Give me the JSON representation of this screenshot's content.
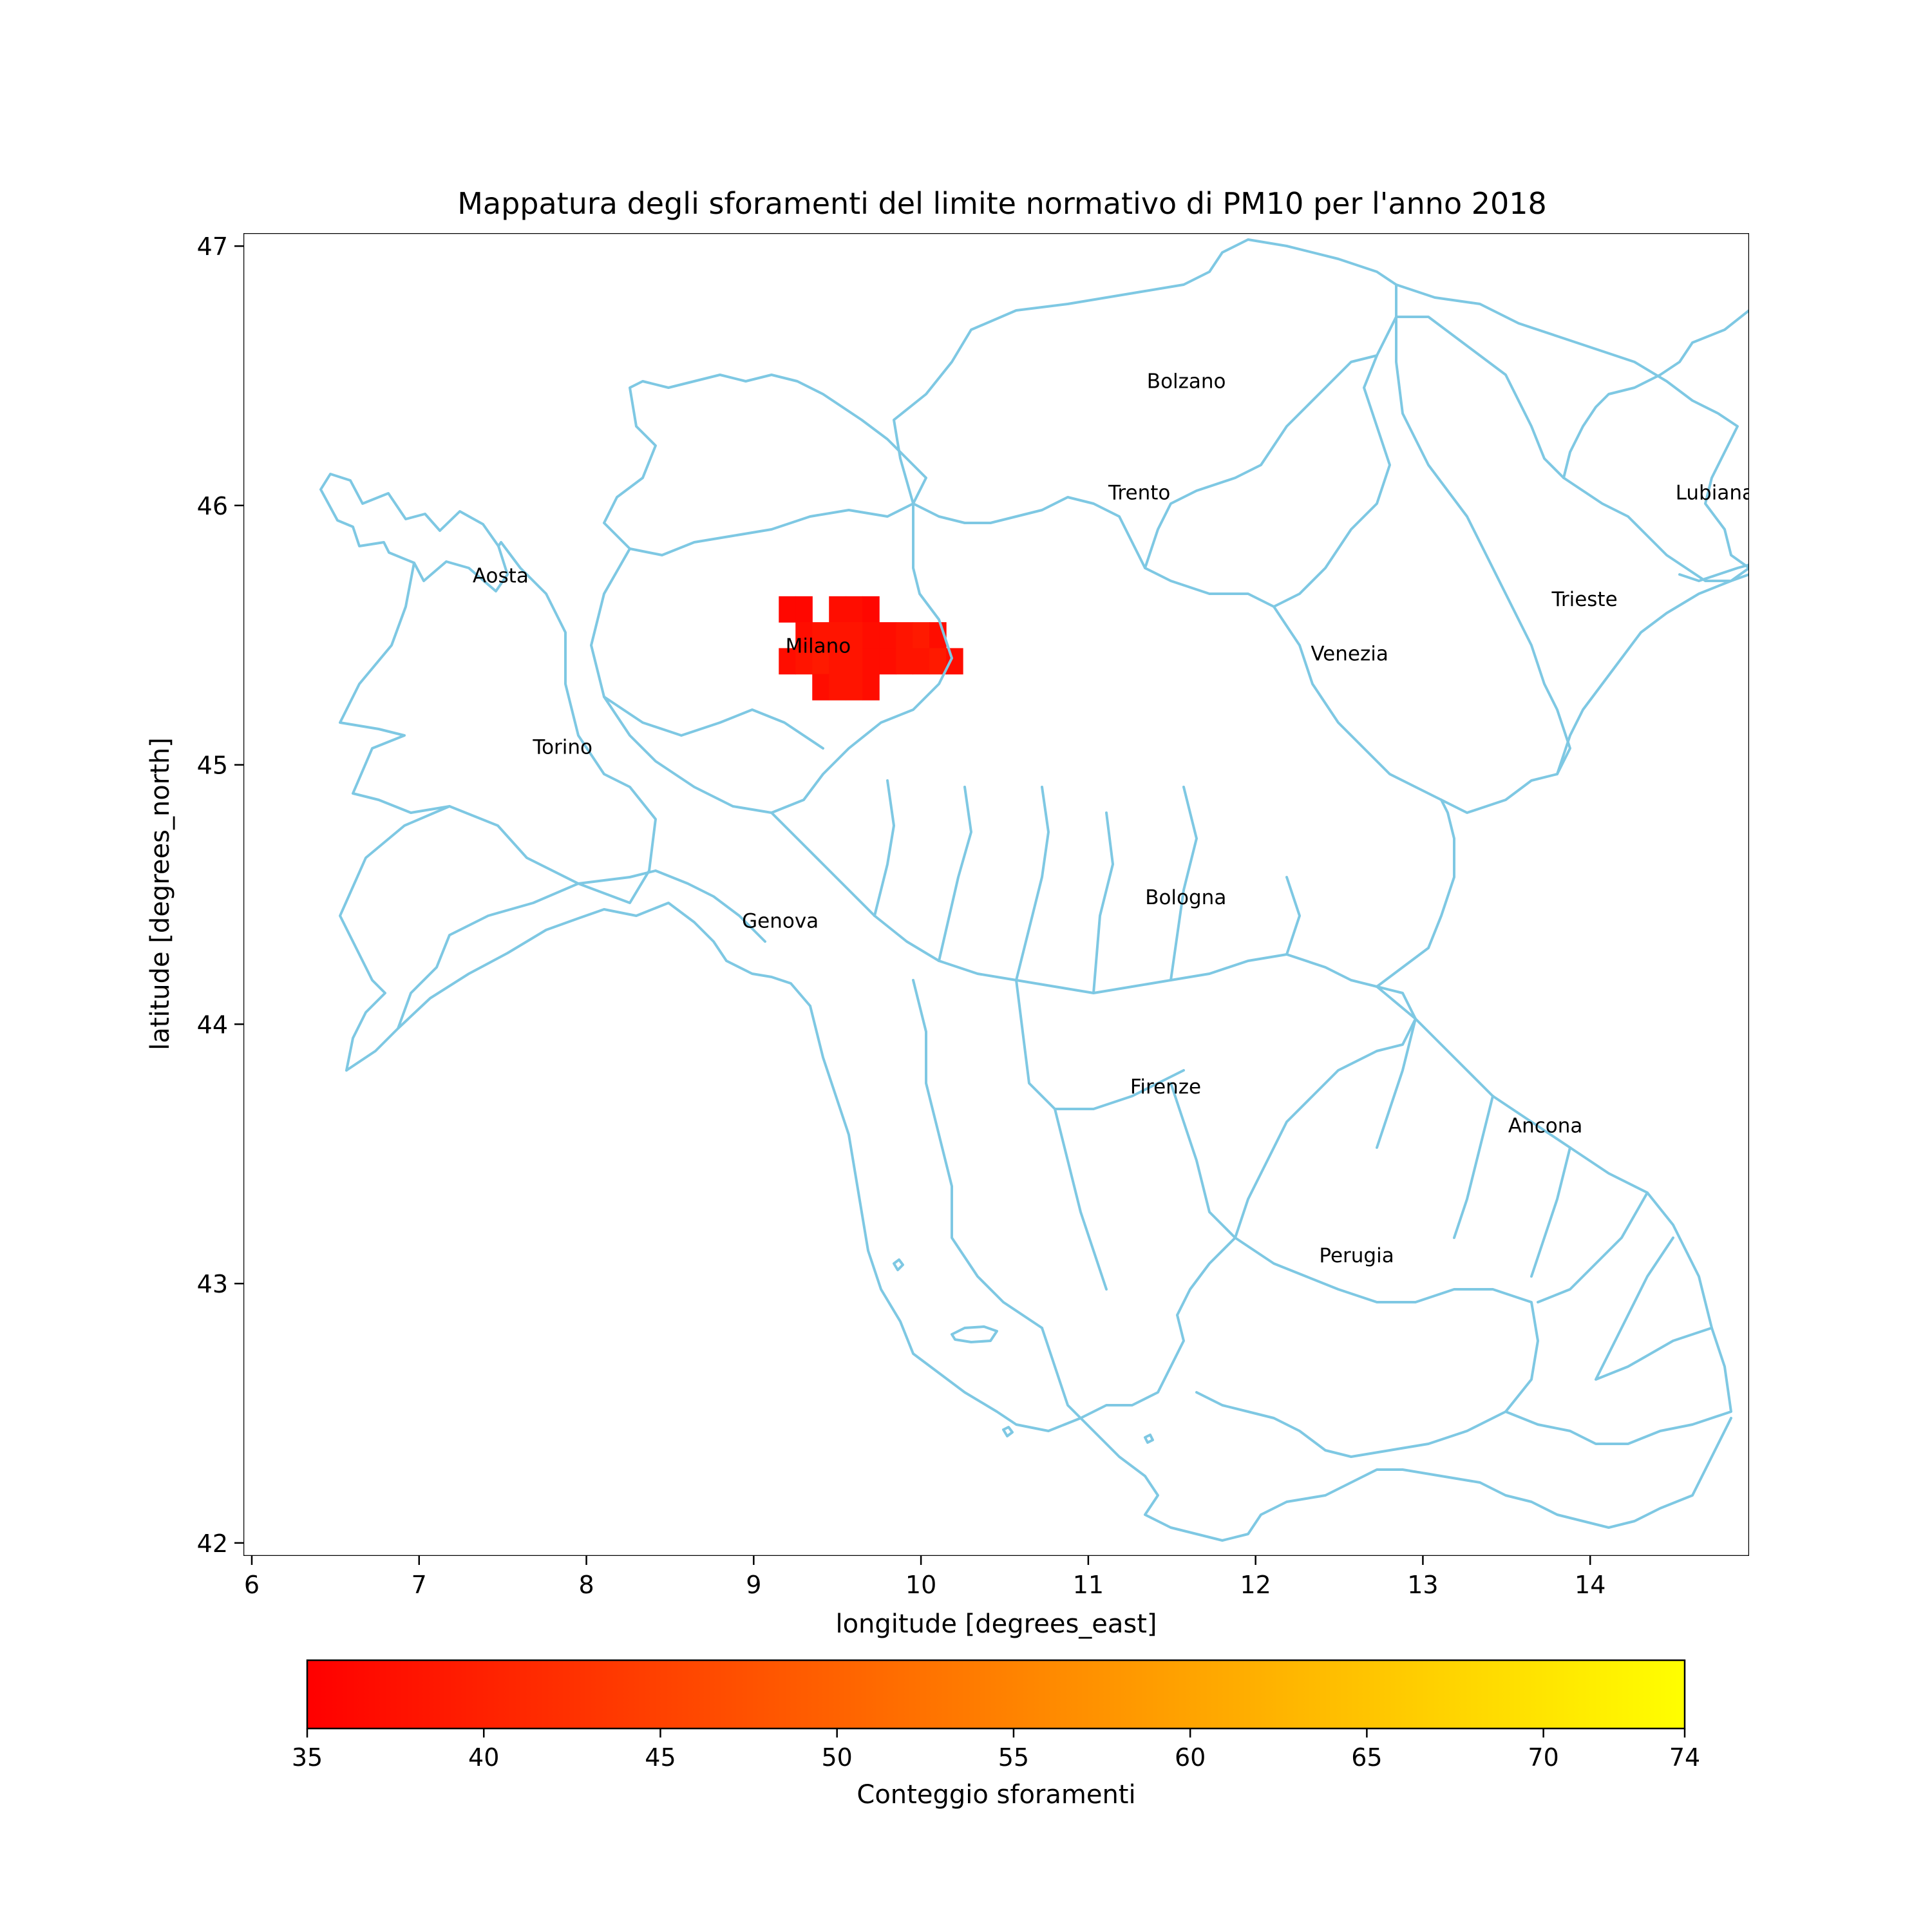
{
  "title": "Mappatura degli sforamenti del limite normativo di PM10 per l'anno 2018",
  "xlabel": "longitude [degrees_east]",
  "ylabel": "latitude [degrees_north]",
  "x_ticks": [
    "6",
    "7",
    "8",
    "9",
    "10",
    "11",
    "12",
    "13",
    "14"
  ],
  "y_ticks": [
    "42",
    "43",
    "44",
    "45",
    "46",
    "47"
  ],
  "x_range": [
    5.95,
    14.95
  ],
  "y_range": [
    41.95,
    47.05
  ],
  "cities": [
    {
      "name": "Bolzano",
      "lon": 11.35,
      "lat": 46.48
    },
    {
      "name": "Trento",
      "lon": 11.12,
      "lat": 46.05
    },
    {
      "name": "Lubiana",
      "lon": 14.51,
      "lat": 46.05
    },
    {
      "name": "Aosta",
      "lon": 7.32,
      "lat": 45.73
    },
    {
      "name": "Trieste",
      "lon": 13.77,
      "lat": 45.64
    },
    {
      "name": "Milano",
      "lon": 9.19,
      "lat": 45.46
    },
    {
      "name": "Venezia",
      "lon": 12.33,
      "lat": 45.43
    },
    {
      "name": "Torino",
      "lon": 7.68,
      "lat": 45.07
    },
    {
      "name": "Bologna",
      "lon": 11.34,
      "lat": 44.49
    },
    {
      "name": "Genova",
      "lon": 8.93,
      "lat": 44.4
    },
    {
      "name": "Firenze",
      "lon": 11.25,
      "lat": 43.76
    },
    {
      "name": "Ancona",
      "lon": 13.51,
      "lat": 43.61
    },
    {
      "name": "Perugia",
      "lon": 12.38,
      "lat": 43.11
    }
  ],
  "colorbar": {
    "label": "Conteggio sforamenti",
    "min": 35,
    "max": 74,
    "ticks": [
      "35",
      "40",
      "45",
      "50",
      "55",
      "60",
      "65",
      "70",
      "74"
    ],
    "colormap": [
      "#ff0000",
      "#ffff00"
    ]
  },
  "colors": {
    "borders": "#7ec8e3"
  },
  "chart_data": {
    "type": "heatmap",
    "title": "Mappatura degli sforamenti del limite normativo di PM10 per l'anno 2018",
    "xlabel": "longitude [degrees_east]",
    "ylabel": "latitude [degrees_north]",
    "xlim": [
      5.95,
      14.95
    ],
    "ylim": [
      41.95,
      47.05
    ],
    "cell_size_deg": 0.1,
    "value_range": [
      35,
      74
    ],
    "cells": [
      {
        "lon": 9.2,
        "lat": 45.6,
        "value": 36
      },
      {
        "lon": 9.3,
        "lat": 45.6,
        "value": 36
      },
      {
        "lon": 9.5,
        "lat": 45.6,
        "value": 37
      },
      {
        "lon": 9.6,
        "lat": 45.6,
        "value": 37
      },
      {
        "lon": 9.7,
        "lat": 45.6,
        "value": 36
      },
      {
        "lon": 9.3,
        "lat": 45.5,
        "value": 37
      },
      {
        "lon": 9.4,
        "lat": 45.5,
        "value": 38
      },
      {
        "lon": 9.5,
        "lat": 45.5,
        "value": 38
      },
      {
        "lon": 9.6,
        "lat": 45.5,
        "value": 38
      },
      {
        "lon": 9.7,
        "lat": 45.5,
        "value": 37
      },
      {
        "lon": 9.8,
        "lat": 45.5,
        "value": 37
      },
      {
        "lon": 9.9,
        "lat": 45.5,
        "value": 38
      },
      {
        "lon": 10.0,
        "lat": 45.5,
        "value": 39
      },
      {
        "lon": 10.1,
        "lat": 45.5,
        "value": 37
      },
      {
        "lon": 9.2,
        "lat": 45.4,
        "value": 37
      },
      {
        "lon": 9.3,
        "lat": 45.4,
        "value": 38
      },
      {
        "lon": 9.4,
        "lat": 45.4,
        "value": 39
      },
      {
        "lon": 9.5,
        "lat": 45.4,
        "value": 38
      },
      {
        "lon": 9.6,
        "lat": 45.4,
        "value": 38
      },
      {
        "lon": 9.7,
        "lat": 45.4,
        "value": 37
      },
      {
        "lon": 9.8,
        "lat": 45.4,
        "value": 37
      },
      {
        "lon": 9.9,
        "lat": 45.4,
        "value": 38
      },
      {
        "lon": 10.0,
        "lat": 45.4,
        "value": 38
      },
      {
        "lon": 10.1,
        "lat": 45.4,
        "value": 39
      },
      {
        "lon": 10.2,
        "lat": 45.4,
        "value": 37
      },
      {
        "lon": 9.4,
        "lat": 45.3,
        "value": 37
      },
      {
        "lon": 9.5,
        "lat": 45.3,
        "value": 38
      },
      {
        "lon": 9.6,
        "lat": 45.3,
        "value": 38
      },
      {
        "lon": 9.7,
        "lat": 45.3,
        "value": 37
      }
    ]
  }
}
